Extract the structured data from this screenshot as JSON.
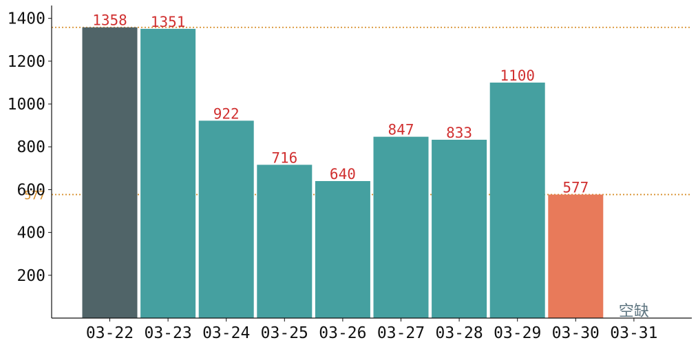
{
  "chart_data": {
    "type": "bar",
    "categories": [
      "03-22",
      "03-23",
      "03-24",
      "03-25",
      "03-26",
      "03-27",
      "03-28",
      "03-29",
      "03-30",
      "03-31"
    ],
    "values": [
      1358,
      1351,
      922,
      716,
      640,
      847,
      833,
      1100,
      577,
      null
    ],
    "data_labels": [
      "1358",
      "1351",
      "922",
      "716",
      "640",
      "847",
      "833",
      "1100",
      "577",
      "空缺"
    ],
    "bar_colors": [
      "#506468",
      "#45a0a0",
      "#45a0a0",
      "#45a0a0",
      "#45a0a0",
      "#45a0a0",
      "#45a0a0",
      "#45a0a0",
      "#e87a5a",
      null
    ],
    "yticks": [
      200,
      400,
      600,
      800,
      1000,
      1200,
      1400
    ],
    "ylim": [
      0,
      1460
    ],
    "reference_lines": [
      {
        "value": 1358,
        "label": "",
        "color": "#d8902c"
      },
      {
        "value": 577,
        "label": "577",
        "color": "#d8902c"
      }
    ],
    "missing_label_color": "#5e7580",
    "data_label_color": "#d03030",
    "grid": false,
    "title": "",
    "xlabel": "",
    "ylabel": ""
  }
}
